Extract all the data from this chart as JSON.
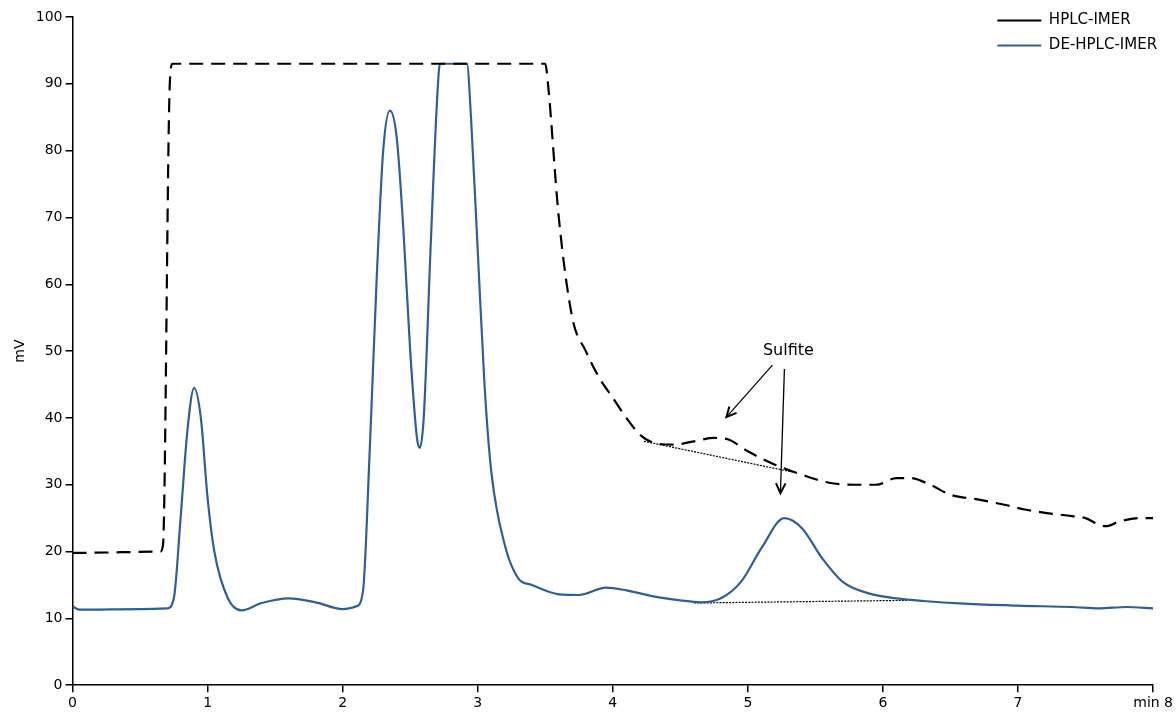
{
  "chart_data": {
    "type": "line",
    "ylabel": "mV",
    "xlim": [
      0,
      8
    ],
    "xticks": [
      0,
      1,
      2,
      3,
      4,
      5,
      6,
      7,
      {
        "value": 8,
        "label": "min 8"
      }
    ],
    "ylim": [
      0,
      100
    ],
    "yticks": [
      0,
      10,
      20,
      30,
      40,
      50,
      60,
      70,
      80,
      90,
      100
    ],
    "grid": false,
    "legend": "top right",
    "marker": "none",
    "annotations": [
      "Sulfite"
    ],
    "series": [
      {
        "name": "HPLC-IMER",
        "color": "#000000",
        "line_style": "dashed",
        "x": [
          0,
          0.65,
          0.67,
          0.72,
          0.74,
          3.5,
          3.52,
          3.6,
          3.7,
          3.8,
          3.9,
          4.0,
          4.1,
          4.2,
          4.3,
          4.45,
          4.6,
          4.75,
          4.85,
          5.0,
          5.2,
          5.4,
          5.6,
          5.8,
          5.95,
          6.1,
          6.2,
          6.35,
          6.5,
          6.7,
          6.9,
          7.05,
          7.2,
          7.4,
          7.5,
          7.6,
          7.65,
          7.75,
          7.9,
          8
        ],
        "values": [
          19.8,
          20,
          21,
          90,
          93,
          93,
          90,
          70,
          55,
          50,
          46,
          43,
          40,
          37.5,
          36.3,
          36,
          36.5,
          37,
          36.8,
          35,
          33,
          31.5,
          30.3,
          30,
          30,
          31,
          31,
          30,
          28.5,
          27.8,
          27,
          26.3,
          25.8,
          25.3,
          25,
          24,
          23.8,
          24.5,
          25,
          25
        ]
      },
      {
        "name": "DE-HPLC-IMER",
        "color": "#2e5f99",
        "line_style": "solid",
        "x": [
          0,
          0.05,
          0.5,
          0.7,
          0.75,
          0.8,
          0.85,
          0.9,
          0.95,
          1.0,
          1.05,
          1.15,
          1.25,
          1.4,
          1.6,
          1.8,
          2.0,
          2.1,
          2.15,
          2.2,
          2.25,
          2.3,
          2.35,
          2.4,
          2.45,
          2.5,
          2.55,
          2.57,
          2.6,
          2.65,
          2.7,
          2.72,
          2.92,
          2.95,
          3.0,
          3.05,
          3.1,
          3.2,
          3.3,
          3.4,
          3.6,
          3.75,
          3.95,
          4.1,
          4.3,
          4.5,
          4.65,
          4.8,
          4.95,
          5.1,
          5.27,
          5.4,
          5.55,
          5.7,
          5.9,
          6.1,
          6.3,
          6.6,
          7.0,
          7.4,
          7.6,
          7.8,
          8
        ],
        "values": [
          11.8,
          11.3,
          11.4,
          11.5,
          13,
          25,
          38,
          44.5,
          40,
          28,
          20,
          13,
          11.2,
          12.3,
          13,
          12.4,
          11.4,
          11.8,
          14,
          35,
          60,
          80,
          86,
          82,
          68,
          50,
          37,
          35.5,
          40,
          65,
          88,
          93,
          93,
          85,
          65,
          45,
          32,
          21,
          16,
          15,
          13.6,
          13.5,
          14.6,
          14.2,
          13.3,
          12.7,
          12.4,
          13,
          15.5,
          20.5,
          25,
          23.5,
          19,
          15.5,
          13.7,
          13,
          12.6,
          12.2,
          11.9,
          11.7,
          11.5,
          11.7,
          11.5
        ]
      },
      {
        "type": "line",
        "color": "#000000",
        "line_style": "dotted",
        "x": [
          4.23,
          5.33
        ],
        "values": [
          36.5,
          31.9
        ]
      },
      {
        "type": "line",
        "color": "#000000",
        "line_style": "dotted",
        "x": [
          4.6,
          6.18
        ],
        "values": [
          12.3,
          12.7
        ]
      }
    ]
  }
}
